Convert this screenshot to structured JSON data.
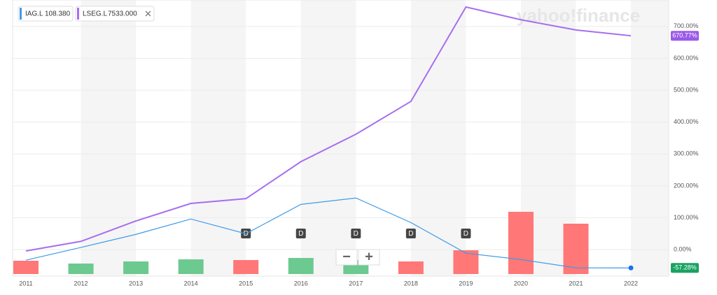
{
  "chart_data": {
    "type": "line",
    "logo": "yahoo!finance",
    "legend": [
      {
        "symbol": "IAG.L",
        "price": "108.380"
      },
      {
        "symbol": "LSEG.L",
        "price": "7533.000"
      }
    ],
    "categories": [
      "2011",
      "2012",
      "2013",
      "2014",
      "2015",
      "2016",
      "2017",
      "2018",
      "2019",
      "2020",
      "2021",
      "2022"
    ],
    "series": [
      {
        "name": "LSEG.L",
        "color": "#a66ef0",
        "values": [
          -4,
          26,
          90,
          145,
          160,
          276,
          362,
          465,
          761,
          721,
          689,
          670.77
        ],
        "value_labels": [
          null,
          null,
          null,
          null,
          null,
          null,
          null,
          null,
          null,
          null,
          null,
          "670.77%"
        ],
        "label_color": "#9b59e6"
      },
      {
        "name": "IAG.L",
        "color": "#3d9be9",
        "values": [
          -33,
          7,
          48,
          96,
          50,
          142,
          162,
          85,
          -11,
          -31,
          -57,
          -57.28
        ],
        "value_labels": [
          null,
          null,
          null,
          null,
          null,
          null,
          null,
          null,
          null,
          null,
          null,
          "-57.28%"
        ],
        "label_color": "#1aa260"
      }
    ],
    "volume": [
      19,
      15,
      18,
      21,
      20,
      23,
      20,
      18,
      34,
      89,
      72,
      null
    ],
    "volume_colors": [
      "#ff7777",
      "#6cc990",
      "#6cc990",
      "#6cc990",
      "#ff7777",
      "#6cc990",
      "#6cc990",
      "#ff7777",
      "#ff7777",
      "#ff7777",
      "#ff7777",
      null
    ],
    "dividend_marker": "D",
    "dividends": [
      "2015",
      "2016",
      "2017",
      "2018",
      "2019"
    ],
    "zoom": [
      "−",
      "+"
    ],
    "ylim": [
      -83,
      783
    ],
    "yticks": [
      {
        "value": 0,
        "label": "0.00%"
      },
      {
        "value": 100,
        "label": "100.00%"
      },
      {
        "value": 200,
        "label": "200.00%"
      },
      {
        "value": 300,
        "label": "300.00%"
      },
      {
        "value": 400,
        "label": "400.00%"
      },
      {
        "value": 500,
        "label": "500.00%"
      },
      {
        "value": 600,
        "label": "600.00%"
      },
      {
        "value": 700,
        "label": "700.00%"
      }
    ],
    "grid": true
  }
}
